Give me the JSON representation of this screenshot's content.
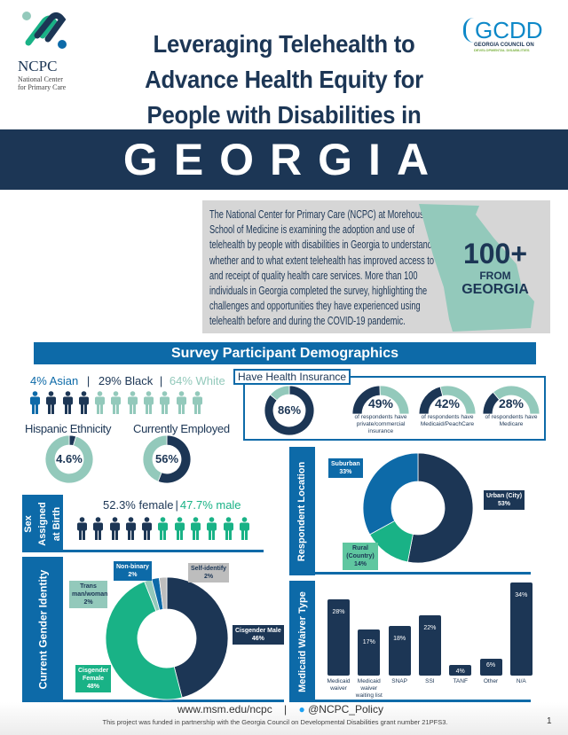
{
  "colors": {
    "navy": "#1c3655",
    "blue": "#0d6aa8",
    "teal": "#93c9bb",
    "green": "#19b286",
    "gray": "#bdbdbd"
  },
  "logos": {
    "ncpc": {
      "name": "NCPC",
      "sub1": "National Center",
      "sub2": "for Primary Care"
    },
    "gcdd": {
      "name": "GCDD",
      "sub1": "GEORGIA COUNCIL ON",
      "sub2": "DEVELOPMENTAL DISABILITIES"
    }
  },
  "title": {
    "line1": "Leveraging Telehealth to",
    "line2": "Advance Health Equity for",
    "line3": "People with Disabilities in",
    "state": "GEORGIA"
  },
  "intro": {
    "text": "The National Center for Primary Care (NCPC) at Morehouse School of Medicine is examining the adoption and use of telehealth by people with disabilities in Georgia to understand whether and to what extent telehealth has improved access to and receipt of quality health care services. More than 100 individuals in Georgia completed the survey, highlighting the challenges and opportunities they have experienced using telehealth before and during the COVID-19 pandemic.",
    "map_big": "100+",
    "map_small1": "FROM",
    "map_small2": "GEORGIA"
  },
  "demographics": {
    "banner": "Survey Participant Demographics",
    "race": {
      "asian": "4% Asian",
      "sep": "|",
      "black": "29% Black",
      "white": "64% White"
    },
    "hispanic": {
      "label": "Hispanic Ethnicity",
      "value": "4.6%",
      "percent": 4.6
    },
    "employed": {
      "label": "Currently Employed",
      "value": "56%",
      "percent": 56
    },
    "sex": {
      "tab": "Sex Assigned at Birth",
      "female": "52.3% female",
      "sep": "|",
      "male": "47.7% male"
    },
    "insurance": {
      "title": "Have Health Insurance",
      "value": "86%",
      "percent": 86,
      "items": [
        {
          "value": "49%",
          "percent": 49,
          "text": "of respondents have private/commercial insurance"
        },
        {
          "value": "42%",
          "percent": 42,
          "text": "of respondents have Medicaid/PeachCare"
        },
        {
          "value": "28%",
          "percent": 28,
          "text": "of respondents have Medicare"
        }
      ]
    }
  },
  "chart_data": [
    {
      "type": "pie",
      "title": "Respondent Location",
      "slices": [
        {
          "label": "Urban (City)",
          "value": 53,
          "display": "53%"
        },
        {
          "label": "Rural (Country)",
          "value": 14,
          "display": "14%"
        },
        {
          "label": "Suburban",
          "value": 33,
          "display": "33%"
        }
      ]
    },
    {
      "type": "pie",
      "title": "Current Gender Identity",
      "slices": [
        {
          "label": "Cisgender Male",
          "value": 46,
          "display": "46%"
        },
        {
          "label": "Cisgender Female",
          "value": 48,
          "display": "48%"
        },
        {
          "label": "Trans man/woman",
          "value": 2,
          "display": "2%"
        },
        {
          "label": "Non-binary",
          "value": 2,
          "display": "2%"
        },
        {
          "label": "Self-identify",
          "value": 2,
          "display": "2%"
        }
      ]
    },
    {
      "type": "bar",
      "title": "Medicaid Waiver Type",
      "categories": [
        "Medicaid waiver",
        "Medicaid waiver waiting list",
        "SNAP",
        "SSI",
        "TANF",
        "Other",
        "N/A"
      ],
      "values": [
        28,
        17,
        18,
        22,
        4,
        6,
        34
      ],
      "labels": [
        "28%",
        "17%",
        "18%",
        "22%",
        "4%",
        "6%",
        "34%"
      ]
    }
  ],
  "footer": {
    "url": "www.msm.edu/ncpc",
    "sep": "|",
    "twitter": "@NCPC_Policy",
    "funding": "This project was funded in partnership with the Georgia Council on Developmental Disabilities grant number 21PFS3.",
    "page": "1"
  }
}
